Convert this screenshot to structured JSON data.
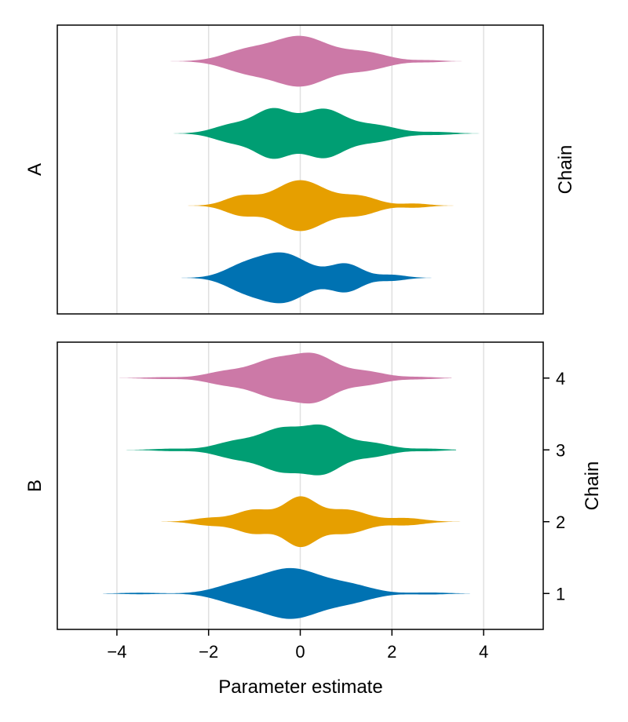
{
  "chart_data": {
    "type": "violin",
    "xlabel": "Parameter estimate",
    "xlim": [
      -5.3,
      5.3
    ],
    "x_ticks": [
      -4,
      -2,
      0,
      2,
      4
    ],
    "x_tick_labels": [
      "−4",
      "−2",
      "0",
      "2",
      "4"
    ],
    "grid": "vertical",
    "ylim": [
      0.5,
      4.5
    ],
    "panels": [
      {
        "label": "A",
        "right_label": "Chain",
        "show_y_ticks": false,
        "violins": [
          {
            "chain": 1,
            "color": "#0072B2",
            "range": [
              -3.5,
              3.3
            ],
            "modes": [
              [
                -0.4,
                0.55,
                1.0
              ],
              [
                1.0,
                0.35,
                0.55
              ],
              [
                -1.3,
                0.4,
                0.35
              ],
              [
                2.0,
                0.3,
                0.12
              ]
            ],
            "peak": 0.9
          },
          {
            "chain": 2,
            "color": "#E69F00",
            "range": [
              -3.6,
              3.4
            ],
            "modes": [
              [
                0.0,
                0.55,
                1.0
              ],
              [
                -1.3,
                0.35,
                0.35
              ],
              [
                1.3,
                0.4,
                0.35
              ],
              [
                2.5,
                0.3,
                0.08
              ]
            ],
            "peak": 0.9
          },
          {
            "chain": 3,
            "color": "#009E73",
            "range": [
              -4.0,
              4.5
            ],
            "modes": [
              [
                -0.6,
                0.4,
                0.85
              ],
              [
                0.5,
                0.45,
                0.85
              ],
              [
                -1.5,
                0.4,
                0.3
              ],
              [
                1.6,
                0.5,
                0.3
              ],
              [
                3.0,
                0.35,
                0.05
              ]
            ],
            "peak": 0.9
          },
          {
            "chain": 4,
            "color": "#CC79A7",
            "range": [
              -3.4,
              4.0
            ],
            "modes": [
              [
                0.0,
                0.6,
                1.0
              ],
              [
                -1.2,
                0.5,
                0.4
              ],
              [
                1.4,
                0.5,
                0.35
              ],
              [
                2.8,
                0.3,
                0.04
              ]
            ],
            "peak": 0.9
          }
        ]
      },
      {
        "label": "B",
        "right_label": "Chain",
        "show_y_ticks": true,
        "y_ticks": [
          1,
          2,
          3,
          4
        ],
        "y_tick_labels": [
          "1",
          "2",
          "3",
          "4"
        ],
        "violins": [
          {
            "chain": 1,
            "color": "#0072B2",
            "range": [
              -4.3,
              3.7
            ],
            "modes": [
              [
                -0.2,
                0.65,
                1.0
              ],
              [
                1.1,
                0.5,
                0.3
              ],
              [
                -1.4,
                0.5,
                0.3
              ],
              [
                -3.5,
                0.4,
                0.03
              ],
              [
                2.8,
                0.4,
                0.04
              ]
            ],
            "peak": 0.9
          },
          {
            "chain": 2,
            "color": "#E69F00",
            "range": [
              -3.3,
              3.5
            ],
            "modes": [
              [
                0.0,
                0.35,
                1.0
              ],
              [
                -1.0,
                0.4,
                0.5
              ],
              [
                1.0,
                0.45,
                0.5
              ],
              [
                -2.0,
                0.35,
                0.15
              ],
              [
                2.3,
                0.4,
                0.15
              ]
            ],
            "peak": 0.9
          },
          {
            "chain": 3,
            "color": "#009E73",
            "range": [
              -3.9,
              3.4
            ],
            "modes": [
              [
                -0.4,
                0.45,
                0.85
              ],
              [
                0.5,
                0.4,
                0.9
              ],
              [
                -1.4,
                0.45,
                0.35
              ],
              [
                1.5,
                0.45,
                0.3
              ],
              [
                -2.8,
                0.4,
                0.05
              ],
              [
                2.8,
                0.35,
                0.05
              ]
            ],
            "peak": 0.9
          },
          {
            "chain": 4,
            "color": "#CC79A7",
            "range": [
              -4.2,
              3.3
            ],
            "modes": [
              [
                0.3,
                0.45,
                1.0
              ],
              [
                -0.6,
                0.45,
                0.75
              ],
              [
                -1.6,
                0.45,
                0.3
              ],
              [
                1.4,
                0.45,
                0.3
              ],
              [
                -3.0,
                0.4,
                0.04
              ],
              [
                2.6,
                0.35,
                0.05
              ]
            ],
            "peak": 0.9
          }
        ]
      }
    ]
  }
}
